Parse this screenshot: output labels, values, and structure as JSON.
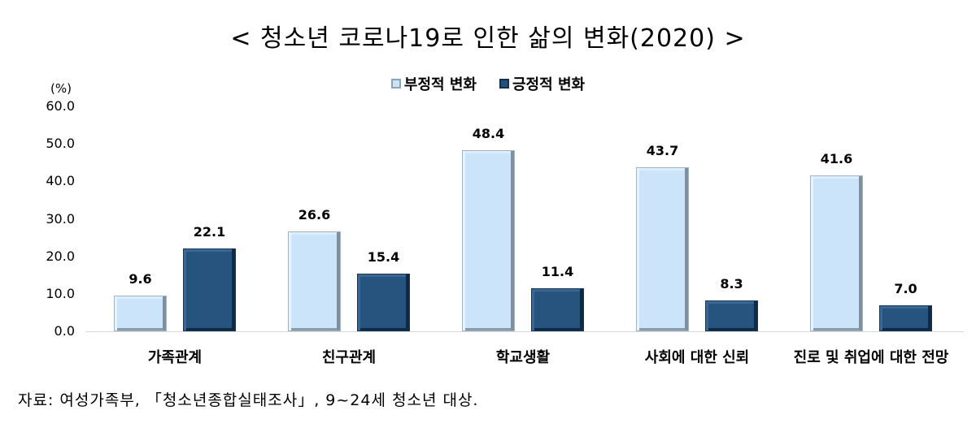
{
  "title": "< 청소년 코로나19로 인한 삶의 변화(2020) >",
  "legend": [
    {
      "label": "부정적 변화",
      "color": "#c9e3f8"
    },
    {
      "label": "긍정적 변화",
      "color": "#24527f"
    }
  ],
  "yaxis": {
    "unit": "(%)",
    "ticks": [
      "0.0",
      "10.0",
      "20.0",
      "30.0",
      "40.0",
      "50.0",
      "60.0"
    ]
  },
  "categories": [
    "가족관계",
    "친구관계",
    "학교생활",
    "사회에 대한 신뢰",
    "진로 및 취업에 대한 전망"
  ],
  "series": [
    {
      "name": "부정적 변화",
      "values": [
        "9.6",
        "26.6",
        "48.4",
        "43.7",
        "41.6"
      ]
    },
    {
      "name": "긍정적 변화",
      "values": [
        "22.1",
        "15.4",
        "11.4",
        "8.3",
        "7.0"
      ]
    }
  ],
  "source": "자료: 여성가족부, 「청소년종합실태조사」, 9~24세 청소년 대상.",
  "chart_data": {
    "type": "bar",
    "title": "< 청소년 코로나19로 인한 삶의 변화(2020) >",
    "categories": [
      "가족관계",
      "친구관계",
      "학교생활",
      "사회에 대한 신뢰",
      "진로 및 취업에 대한 전망"
    ],
    "series": [
      {
        "name": "부정적 변화",
        "values": [
          9.6,
          26.6,
          48.4,
          43.7,
          41.6
        ],
        "color": "#c9e3f8"
      },
      {
        "name": "긍정적 변화",
        "values": [
          22.1,
          15.4,
          11.4,
          8.3,
          7.0
        ],
        "color": "#24527f"
      }
    ],
    "xlabel": "",
    "ylabel": "(%)",
    "ylim": [
      0,
      60
    ],
    "yticks": [
      0,
      10,
      20,
      30,
      40,
      50,
      60
    ],
    "grid": false,
    "legend_position": "top",
    "data_labels": true,
    "annotations": [
      "자료: 여성가족부, 「청소년종합실태조사」, 9~24세 청소년 대상."
    ]
  }
}
